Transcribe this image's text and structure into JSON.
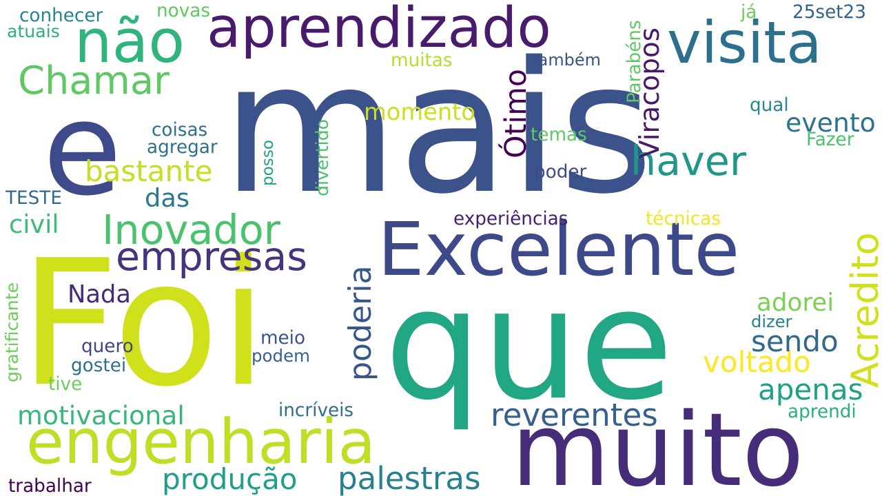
{
  "words": [
    {
      "text": "mais",
      "color": "#3b528b"
    },
    {
      "text": "Foi",
      "color": "#d0e11c"
    },
    {
      "text": "que",
      "color": "#22a785"
    },
    {
      "text": "e",
      "color": "#3e4a89"
    },
    {
      "text": "muito",
      "color": "#472c7a"
    },
    {
      "text": "Excelente",
      "color": "#3e4989"
    },
    {
      "text": "engenharia",
      "color": "#bddf26"
    },
    {
      "text": "aprendizado",
      "color": "#481b6d"
    },
    {
      "text": "visita",
      "color": "#2d708e"
    },
    {
      "text": "não",
      "color": "#2fb47c"
    },
    {
      "text": "Acredito",
      "color": "#d0e11c"
    },
    {
      "text": "Inovador",
      "color": "#4ac16d"
    },
    {
      "text": "Chamar",
      "color": "#5ec962"
    },
    {
      "text": "empresas",
      "color": "#46327e"
    },
    {
      "text": "haver",
      "color": "#1f978b"
    },
    {
      "text": "poderia",
      "color": "#39568c"
    },
    {
      "text": "palestras",
      "color": "#26818e"
    },
    {
      "text": "reverentes",
      "color": "#355f8d"
    },
    {
      "text": "produção",
      "color": "#1f9e89"
    },
    {
      "text": "motivacional",
      "color": "#35b779"
    },
    {
      "text": "bastante",
      "color": "#c2df23"
    },
    {
      "text": "momento",
      "color": "#c8e020"
    },
    {
      "text": "voltado",
      "color": "#fde725"
    },
    {
      "text": "Viracopos",
      "color": "#48186a"
    },
    {
      "text": "sendo",
      "color": "#31688e"
    },
    {
      "text": "apenas",
      "color": "#1fa187"
    },
    {
      "text": "evento",
      "color": "#2c728e"
    },
    {
      "text": "Ótimo",
      "color": "#440154"
    },
    {
      "text": "civil",
      "color": "#3cbb75"
    },
    {
      "text": "Nada",
      "color": "#482878"
    },
    {
      "text": "adorei",
      "color": "#7ad151"
    },
    {
      "text": "das",
      "color": "#2a788e"
    },
    {
      "text": "experiências",
      "color": "#481f70"
    },
    {
      "text": "técnicas",
      "color": "#f4e61e"
    },
    {
      "text": "TESTE",
      "color": "#31688e"
    },
    {
      "text": "coisas",
      "color": "#2e6e8e"
    },
    {
      "text": "agregar",
      "color": "#2c728e"
    },
    {
      "text": "conhecer",
      "color": "#25848e"
    },
    {
      "text": "atuais",
      "color": "#2ab07f"
    },
    {
      "text": "novas",
      "color": "#5ec962"
    },
    {
      "text": "muitas",
      "color": "#b5de2b"
    },
    {
      "text": "Também",
      "color": "#3b528b"
    },
    {
      "text": "Parabéns",
      "color": "#5ec962"
    },
    {
      "text": "já",
      "color": "#6ccd5a"
    },
    {
      "text": "25set23",
      "color": "#33638d"
    },
    {
      "text": "qual",
      "color": "#23898e"
    },
    {
      "text": "temas",
      "color": "#5ec962"
    },
    {
      "text": "Fazer",
      "color": "#4ac16d"
    },
    {
      "text": "poder",
      "color": "#3e4989"
    },
    {
      "text": "divertido",
      "color": "#4ac16d"
    },
    {
      "text": "posso",
      "color": "#1fa088"
    },
    {
      "text": "meio",
      "color": "#3b528b"
    },
    {
      "text": "podem",
      "color": "#355f8d"
    },
    {
      "text": "quero",
      "color": "#414487"
    },
    {
      "text": "gostei",
      "color": "#2e6f8e"
    },
    {
      "text": "tive",
      "color": "#6ccd5a"
    },
    {
      "text": "gratificante",
      "color": "#6ccd5a"
    },
    {
      "text": "dizer",
      "color": "#26828e"
    },
    {
      "text": "incríveis",
      "color": "#2d708e"
    },
    {
      "text": "aprendi",
      "color": "#2ab07f"
    },
    {
      "text": "trabalhar",
      "color": "#440154"
    }
  ]
}
